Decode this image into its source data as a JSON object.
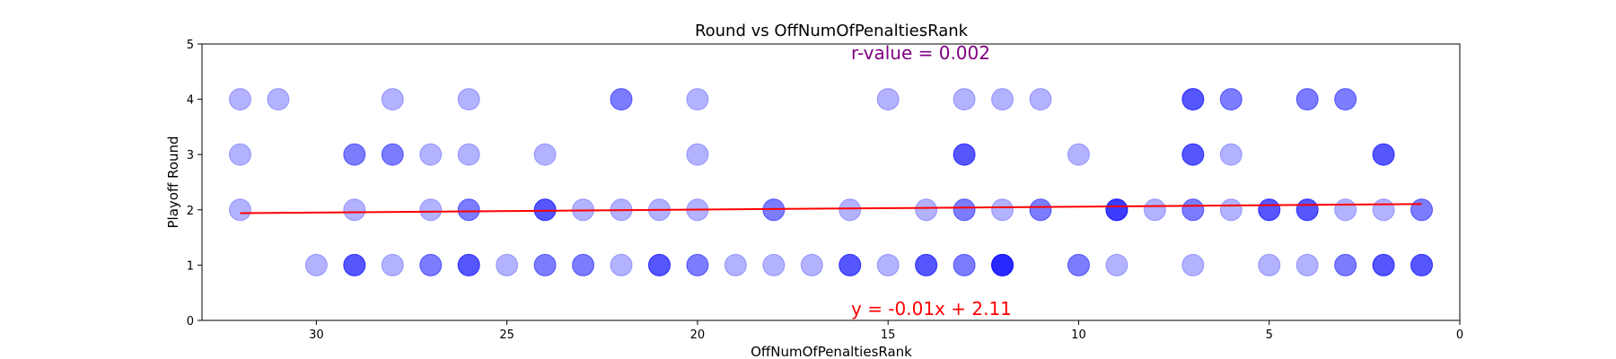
{
  "chart_data": {
    "type": "scatter",
    "title": "Round vs OffNumOfPenaltiesRank",
    "xlabel": "OffNumOfPenaltiesRank",
    "ylabel": "Playoff Round",
    "xlim": [
      33,
      0
    ],
    "ylim": [
      0,
      5
    ],
    "x_inverted": true,
    "xticks": [
      30,
      25,
      20,
      15,
      10,
      5,
      0
    ],
    "yticks": [
      0,
      1,
      2,
      3,
      4,
      5
    ],
    "point_color": "#0000ff",
    "point_alpha": 0.3,
    "points": [
      {
        "x": 32,
        "y": 4
      },
      {
        "x": 31,
        "y": 4
      },
      {
        "x": 28,
        "y": 4
      },
      {
        "x": 26,
        "y": 4
      },
      {
        "x": 22,
        "y": 4
      },
      {
        "x": 22,
        "y": 4
      },
      {
        "x": 20,
        "y": 4
      },
      {
        "x": 15,
        "y": 4
      },
      {
        "x": 13,
        "y": 4
      },
      {
        "x": 12,
        "y": 4
      },
      {
        "x": 11,
        "y": 4
      },
      {
        "x": 7,
        "y": 4
      },
      {
        "x": 7,
        "y": 4
      },
      {
        "x": 7,
        "y": 4
      },
      {
        "x": 6,
        "y": 4
      },
      {
        "x": 6,
        "y": 4
      },
      {
        "x": 4,
        "y": 4
      },
      {
        "x": 4,
        "y": 4
      },
      {
        "x": 3,
        "y": 4
      },
      {
        "x": 3,
        "y": 4
      },
      {
        "x": 32,
        "y": 3
      },
      {
        "x": 29,
        "y": 3
      },
      {
        "x": 29,
        "y": 3
      },
      {
        "x": 28,
        "y": 3
      },
      {
        "x": 28,
        "y": 3
      },
      {
        "x": 27,
        "y": 3
      },
      {
        "x": 26,
        "y": 3
      },
      {
        "x": 24,
        "y": 3
      },
      {
        "x": 20,
        "y": 3
      },
      {
        "x": 13,
        "y": 3
      },
      {
        "x": 13,
        "y": 3
      },
      {
        "x": 13,
        "y": 3
      },
      {
        "x": 10,
        "y": 3
      },
      {
        "x": 7,
        "y": 3
      },
      {
        "x": 7,
        "y": 3
      },
      {
        "x": 7,
        "y": 3
      },
      {
        "x": 6,
        "y": 3
      },
      {
        "x": 2,
        "y": 3
      },
      {
        "x": 2,
        "y": 3
      },
      {
        "x": 2,
        "y": 3
      },
      {
        "x": 32,
        "y": 2
      },
      {
        "x": 29,
        "y": 2
      },
      {
        "x": 27,
        "y": 2
      },
      {
        "x": 26,
        "y": 2
      },
      {
        "x": 26,
        "y": 2
      },
      {
        "x": 24,
        "y": 2
      },
      {
        "x": 24,
        "y": 2
      },
      {
        "x": 24,
        "y": 2
      },
      {
        "x": 23,
        "y": 2
      },
      {
        "x": 22,
        "y": 2
      },
      {
        "x": 21,
        "y": 2
      },
      {
        "x": 20,
        "y": 2
      },
      {
        "x": 18,
        "y": 2
      },
      {
        "x": 18,
        "y": 2
      },
      {
        "x": 16,
        "y": 2
      },
      {
        "x": 14,
        "y": 2
      },
      {
        "x": 13,
        "y": 2
      },
      {
        "x": 13,
        "y": 2
      },
      {
        "x": 12,
        "y": 2
      },
      {
        "x": 11,
        "y": 2
      },
      {
        "x": 11,
        "y": 2
      },
      {
        "x": 9,
        "y": 2
      },
      {
        "x": 9,
        "y": 2
      },
      {
        "x": 9,
        "y": 2
      },
      {
        "x": 9,
        "y": 2
      },
      {
        "x": 8,
        "y": 2
      },
      {
        "x": 7,
        "y": 2
      },
      {
        "x": 7,
        "y": 2
      },
      {
        "x": 6,
        "y": 2
      },
      {
        "x": 5,
        "y": 2
      },
      {
        "x": 5,
        "y": 2
      },
      {
        "x": 5,
        "y": 2
      },
      {
        "x": 4,
        "y": 2
      },
      {
        "x": 4,
        "y": 2
      },
      {
        "x": 4,
        "y": 2
      },
      {
        "x": 3,
        "y": 2
      },
      {
        "x": 2,
        "y": 2
      },
      {
        "x": 1,
        "y": 2
      },
      {
        "x": 1,
        "y": 2
      },
      {
        "x": 30,
        "y": 1
      },
      {
        "x": 29,
        "y": 1
      },
      {
        "x": 29,
        "y": 1
      },
      {
        "x": 29,
        "y": 1
      },
      {
        "x": 28,
        "y": 1
      },
      {
        "x": 27,
        "y": 1
      },
      {
        "x": 27,
        "y": 1
      },
      {
        "x": 26,
        "y": 1
      },
      {
        "x": 26,
        "y": 1
      },
      {
        "x": 26,
        "y": 1
      },
      {
        "x": 25,
        "y": 1
      },
      {
        "x": 24,
        "y": 1
      },
      {
        "x": 24,
        "y": 1
      },
      {
        "x": 23,
        "y": 1
      },
      {
        "x": 23,
        "y": 1
      },
      {
        "x": 22,
        "y": 1
      },
      {
        "x": 21,
        "y": 1
      },
      {
        "x": 21,
        "y": 1
      },
      {
        "x": 21,
        "y": 1
      },
      {
        "x": 20,
        "y": 1
      },
      {
        "x": 20,
        "y": 1
      },
      {
        "x": 19,
        "y": 1
      },
      {
        "x": 18,
        "y": 1
      },
      {
        "x": 17,
        "y": 1
      },
      {
        "x": 16,
        "y": 1
      },
      {
        "x": 16,
        "y": 1
      },
      {
        "x": 16,
        "y": 1
      },
      {
        "x": 15,
        "y": 1
      },
      {
        "x": 14,
        "y": 1
      },
      {
        "x": 14,
        "y": 1
      },
      {
        "x": 14,
        "y": 1
      },
      {
        "x": 13,
        "y": 1
      },
      {
        "x": 13,
        "y": 1
      },
      {
        "x": 12,
        "y": 1
      },
      {
        "x": 12,
        "y": 1
      },
      {
        "x": 12,
        "y": 1
      },
      {
        "x": 12,
        "y": 1
      },
      {
        "x": 12,
        "y": 1
      },
      {
        "x": 10,
        "y": 1
      },
      {
        "x": 10,
        "y": 1
      },
      {
        "x": 9,
        "y": 1
      },
      {
        "x": 7,
        "y": 1
      },
      {
        "x": 5,
        "y": 1
      },
      {
        "x": 4,
        "y": 1
      },
      {
        "x": 3,
        "y": 1
      },
      {
        "x": 3,
        "y": 1
      },
      {
        "x": 2,
        "y": 1
      },
      {
        "x": 2,
        "y": 1
      },
      {
        "x": 2,
        "y": 1
      },
      {
        "x": 1,
        "y": 1
      },
      {
        "x": 1,
        "y": 1
      },
      {
        "x": 1,
        "y": 1
      }
    ],
    "regression": {
      "color": "#ff0000",
      "slope": -0.0053,
      "intercept": 2.1102,
      "x_range": [
        32,
        1
      ]
    },
    "annotations": {
      "r_value": {
        "text": "r-value = 0.002",
        "color": "#800080"
      },
      "equation": {
        "text": "y = -0.01x + 2.11",
        "color": "#ff0000"
      }
    },
    "grid": false,
    "legend": "none"
  }
}
